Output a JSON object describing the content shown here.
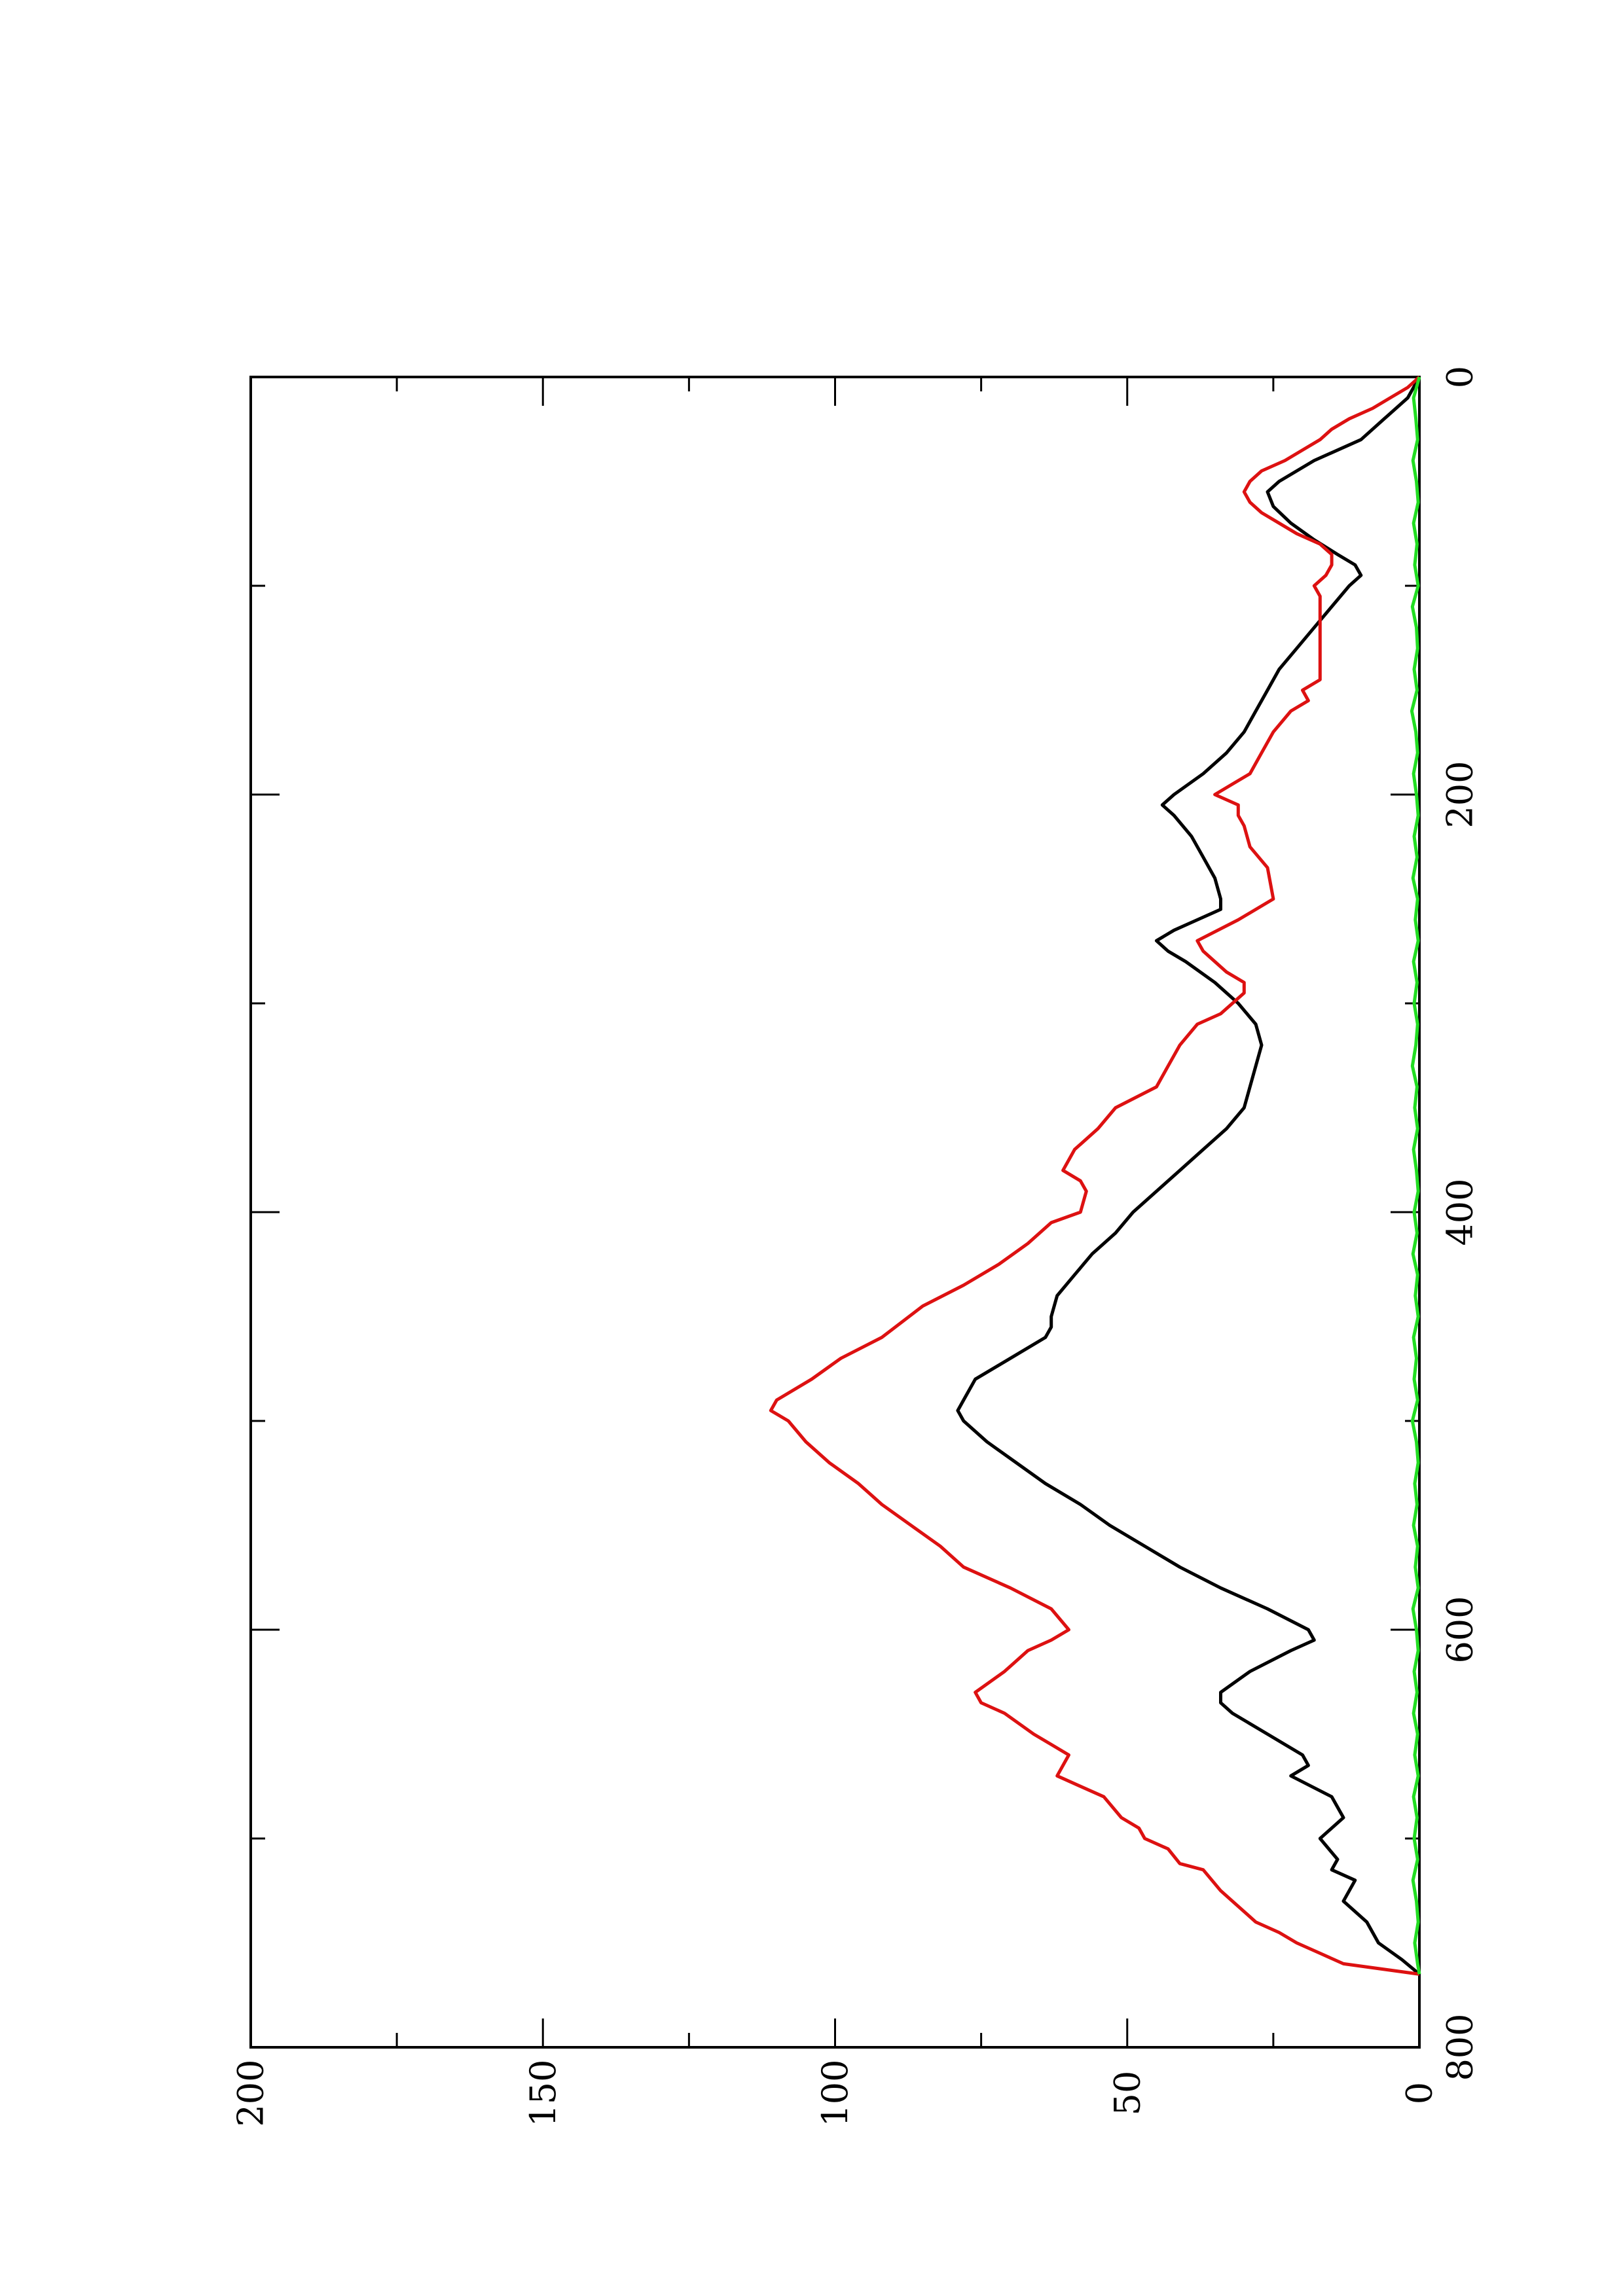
{
  "chart_data": {
    "type": "line",
    "title": "",
    "xlabel": "",
    "ylabel": "",
    "xlim": [
      0,
      800
    ],
    "ylim": [
      0,
      200
    ],
    "x_ticks": [
      0,
      200,
      400,
      600,
      800
    ],
    "y_ticks": [
      0,
      50,
      100,
      150,
      200
    ],
    "x_tick_labels": [
      "0",
      "200",
      "400",
      "600",
      "800"
    ],
    "y_tick_labels": [
      "0",
      "50",
      "100",
      "150",
      "200"
    ],
    "rotation": "page rotated 90 degrees counter-clockwise",
    "grid": false,
    "legend": "none",
    "series": [
      {
        "color": "#000000",
        "points": [
          [
            0,
            0
          ],
          [
            10,
            2
          ],
          [
            20,
            6
          ],
          [
            30,
            10
          ],
          [
            40,
            18
          ],
          [
            50,
            24
          ],
          [
            55,
            26
          ],
          [
            62,
            25
          ],
          [
            70,
            22
          ],
          [
            78,
            18
          ],
          [
            85,
            14
          ],
          [
            90,
            11
          ],
          [
            95,
            10
          ],
          [
            100,
            12
          ],
          [
            110,
            15
          ],
          [
            120,
            18
          ],
          [
            130,
            21
          ],
          [
            140,
            24
          ],
          [
            150,
            26
          ],
          [
            160,
            28
          ],
          [
            170,
            30
          ],
          [
            180,
            33
          ],
          [
            190,
            37
          ],
          [
            200,
            42
          ],
          [
            205,
            44
          ],
          [
            210,
            42
          ],
          [
            220,
            39
          ],
          [
            230,
            37
          ],
          [
            240,
            35
          ],
          [
            250,
            34
          ],
          [
            255,
            34
          ],
          [
            260,
            38
          ],
          [
            265,
            42
          ],
          [
            270,
            45
          ],
          [
            275,
            43
          ],
          [
            280,
            40
          ],
          [
            290,
            35
          ],
          [
            300,
            31
          ],
          [
            310,
            28
          ],
          [
            320,
            27
          ],
          [
            330,
            28
          ],
          [
            340,
            29
          ],
          [
            350,
            30
          ],
          [
            360,
            33
          ],
          [
            370,
            37
          ],
          [
            380,
            41
          ],
          [
            390,
            45
          ],
          [
            400,
            49
          ],
          [
            410,
            52
          ],
          [
            420,
            56
          ],
          [
            430,
            59
          ],
          [
            440,
            62
          ],
          [
            450,
            63
          ],
          [
            455,
            63
          ],
          [
            460,
            64
          ],
          [
            470,
            70
          ],
          [
            480,
            76
          ],
          [
            490,
            78
          ],
          [
            495,
            79
          ],
          [
            500,
            78
          ],
          [
            510,
            74
          ],
          [
            520,
            69
          ],
          [
            530,
            64
          ],
          [
            540,
            58
          ],
          [
            550,
            53
          ],
          [
            560,
            47
          ],
          [
            570,
            41
          ],
          [
            580,
            34
          ],
          [
            590,
            26
          ],
          [
            600,
            19
          ],
          [
            605,
            18
          ],
          [
            610,
            22
          ],
          [
            620,
            29
          ],
          [
            630,
            34
          ],
          [
            635,
            34
          ],
          [
            640,
            32
          ],
          [
            650,
            26
          ],
          [
            660,
            20
          ],
          [
            665,
            19
          ],
          [
            670,
            22
          ],
          [
            680,
            15
          ],
          [
            690,
            13
          ],
          [
            700,
            17
          ],
          [
            710,
            14
          ],
          [
            715,
            15
          ],
          [
            720,
            11
          ],
          [
            730,
            13
          ],
          [
            740,
            9
          ],
          [
            750,
            7
          ],
          [
            758,
            3
          ],
          [
            765,
            0
          ]
        ]
      },
      {
        "color": "#dd1111",
        "points": [
          [
            0,
            0
          ],
          [
            5,
            2
          ],
          [
            10,
            5
          ],
          [
            15,
            8
          ],
          [
            20,
            12
          ],
          [
            25,
            15
          ],
          [
            30,
            17
          ],
          [
            35,
            20
          ],
          [
            40,
            23
          ],
          [
            45,
            27
          ],
          [
            50,
            29
          ],
          [
            55,
            30
          ],
          [
            60,
            29
          ],
          [
            65,
            27
          ],
          [
            70,
            24
          ],
          [
            75,
            21
          ],
          [
            80,
            17
          ],
          [
            85,
            15
          ],
          [
            90,
            15
          ],
          [
            95,
            16
          ],
          [
            100,
            18
          ],
          [
            105,
            17
          ],
          [
            115,
            17
          ],
          [
            130,
            17
          ],
          [
            145,
            17
          ],
          [
            150,
            20
          ],
          [
            155,
            19
          ],
          [
            160,
            22
          ],
          [
            170,
            25
          ],
          [
            180,
            27
          ],
          [
            190,
            29
          ],
          [
            195,
            32
          ],
          [
            200,
            35
          ],
          [
            205,
            31
          ],
          [
            210,
            31
          ],
          [
            215,
            30
          ],
          [
            225,
            29
          ],
          [
            235,
            26
          ],
          [
            250,
            25
          ],
          [
            260,
            31
          ],
          [
            270,
            38
          ],
          [
            275,
            37
          ],
          [
            285,
            33
          ],
          [
            290,
            30
          ],
          [
            295,
            30
          ],
          [
            300,
            32
          ],
          [
            305,
            34
          ],
          [
            310,
            38
          ],
          [
            320,
            41
          ],
          [
            330,
            43
          ],
          [
            340,
            45
          ],
          [
            350,
            52
          ],
          [
            360,
            55
          ],
          [
            370,
            59
          ],
          [
            380,
            61
          ],
          [
            385,
            58
          ],
          [
            390,
            57
          ],
          [
            400,
            58
          ],
          [
            405,
            63
          ],
          [
            415,
            67
          ],
          [
            425,
            72
          ],
          [
            435,
            78
          ],
          [
            445,
            85
          ],
          [
            460,
            92
          ],
          [
            470,
            99
          ],
          [
            480,
            104
          ],
          [
            490,
            110
          ],
          [
            495,
            111
          ],
          [
            500,
            108
          ],
          [
            510,
            105
          ],
          [
            520,
            101
          ],
          [
            530,
            96
          ],
          [
            540,
            92
          ],
          [
            550,
            87
          ],
          [
            560,
            82
          ],
          [
            570,
            78
          ],
          [
            580,
            70
          ],
          [
            590,
            63
          ],
          [
            600,
            60
          ],
          [
            605,
            63
          ],
          [
            610,
            67
          ],
          [
            620,
            71
          ],
          [
            630,
            76
          ],
          [
            635,
            75
          ],
          [
            640,
            71
          ],
          [
            650,
            66
          ],
          [
            655,
            63
          ],
          [
            660,
            60
          ],
          [
            670,
            62
          ],
          [
            675,
            58
          ],
          [
            680,
            54
          ],
          [
            690,
            51
          ],
          [
            695,
            48
          ],
          [
            700,
            47
          ],
          [
            705,
            43
          ],
          [
            712,
            41
          ],
          [
            715,
            37
          ],
          [
            725,
            34
          ],
          [
            730,
            32
          ],
          [
            740,
            28
          ],
          [
            745,
            24
          ],
          [
            750,
            21
          ],
          [
            755,
            17
          ],
          [
            760,
            13
          ],
          [
            765,
            0
          ]
        ]
      },
      {
        "color": "#22dd22",
        "points": [
          [
            0,
            0
          ],
          [
            10,
            1
          ],
          [
            20,
            0.6
          ],
          [
            30,
            0.3
          ],
          [
            40,
            1.1
          ],
          [
            50,
            0.5
          ],
          [
            60,
            0.2
          ],
          [
            70,
            1
          ],
          [
            80,
            0.4
          ],
          [
            90,
            0.8
          ],
          [
            100,
            0.2
          ],
          [
            110,
            1.2
          ],
          [
            120,
            0.5
          ],
          [
            130,
            0.3
          ],
          [
            140,
            0.9
          ],
          [
            150,
            0.4
          ],
          [
            160,
            1.3
          ],
          [
            170,
            0.6
          ],
          [
            180,
            0.3
          ],
          [
            190,
            1
          ],
          [
            200,
            0.5
          ],
          [
            210,
            0.2
          ],
          [
            220,
            0.9
          ],
          [
            230,
            0.4
          ],
          [
            240,
            1.1
          ],
          [
            250,
            0.3
          ],
          [
            260,
            0.7
          ],
          [
            270,
            0.2
          ],
          [
            280,
            1
          ],
          [
            290,
            0.4
          ],
          [
            300,
            0.9
          ],
          [
            310,
            0.3
          ],
          [
            320,
            0.6
          ],
          [
            330,
            1.2
          ],
          [
            340,
            0.4
          ],
          [
            350,
            0.8
          ],
          [
            360,
            0.3
          ],
          [
            370,
            1
          ],
          [
            380,
            0.5
          ],
          [
            390,
            0.2
          ],
          [
            400,
            0.9
          ],
          [
            410,
            0.4
          ],
          [
            420,
            1.1
          ],
          [
            430,
            0.3
          ],
          [
            440,
            0.7
          ],
          [
            450,
            0.2
          ],
          [
            460,
            1
          ],
          [
            470,
            0.5
          ],
          [
            480,
            0.9
          ],
          [
            490,
            0.3
          ],
          [
            500,
            1.2
          ],
          [
            510,
            0.5
          ],
          [
            520,
            0.2
          ],
          [
            530,
            0.8
          ],
          [
            540,
            0.4
          ],
          [
            550,
            1
          ],
          [
            560,
            0.3
          ],
          [
            570,
            0.7
          ],
          [
            580,
            0.2
          ],
          [
            590,
            1.1
          ],
          [
            600,
            0.5
          ],
          [
            610,
            0.2
          ],
          [
            620,
            0.9
          ],
          [
            630,
            0.4
          ],
          [
            640,
            1
          ],
          [
            650,
            0.3
          ],
          [
            660,
            0.8
          ],
          [
            670,
            0.2
          ],
          [
            680,
            1
          ],
          [
            690,
            0.4
          ],
          [
            700,
            0.9
          ],
          [
            710,
            0.3
          ],
          [
            720,
            1.1
          ],
          [
            730,
            0.5
          ],
          [
            740,
            0.2
          ],
          [
            750,
            0.8
          ],
          [
            760,
            0.3
          ],
          [
            765,
            0
          ]
        ]
      }
    ]
  }
}
